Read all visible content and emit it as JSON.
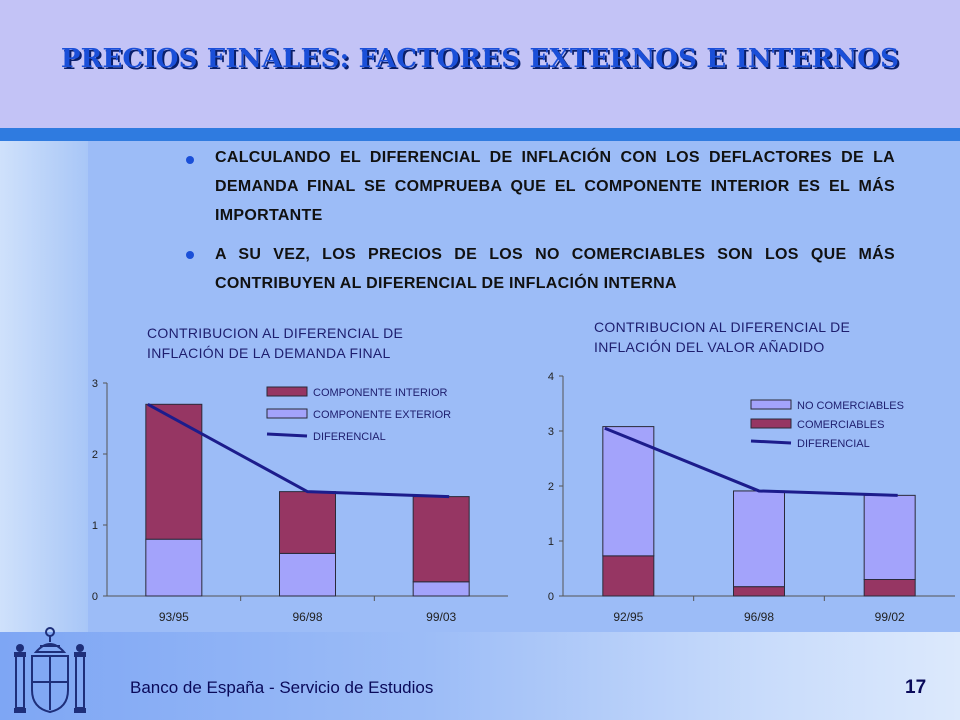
{
  "slide": {
    "title": "PRECIOS FINALES: FACTORES EXTERNOS E INTERNOS",
    "bullets": [
      "CALCULANDO  EL DIFERENCIAL DE INFLACIÓN CON  LOS DEFLACTORES DE LA DEMANDA FINAL SE COMPRUEBA QUE EL COMPONENTE INTERIOR ES EL MÁS IMPORTANTE",
      "A SU VEZ, LOS PRECIOS DE LOS NO COMERCIABLES SON LOS QUE MÁS CONTRIBUYEN AL DIFERENCIAL DE INFLACIÓN INTERNA"
    ],
    "footer": "Banco de España - Servicio de Estudios",
    "page_number": "17"
  },
  "colors": {
    "maroon": "#963663",
    "lavender": "#a3a3fb",
    "line": "#1c1c8c",
    "title": "#1a4fd8"
  },
  "chart_data": [
    {
      "type": "bar",
      "stacked": true,
      "title": "CONTRIBUCION AL DIFERENCIAL  DE INFLACIÓN DE LA DEMANDA FINAL",
      "categories": [
        "93/95",
        "96/98",
        "99/03"
      ],
      "yticks": [
        "0",
        "1",
        "2",
        "3"
      ],
      "ylim": [
        0,
        3
      ],
      "series": [
        {
          "name": "COMPONENTE  EXTERIOR",
          "kind": "bar",
          "values": [
            0.8,
            0.6,
            0.2
          ]
        },
        {
          "name": "COMPONENTE  INTERIOR",
          "kind": "bar",
          "values": [
            1.9,
            0.87,
            1.2
          ]
        },
        {
          "name": "DIFERENCIAL",
          "kind": "line",
          "values": [
            2.7,
            1.47,
            1.4
          ]
        }
      ],
      "legend_order": [
        "COMPONENTE  INTERIOR",
        "COMPONENTE  EXTERIOR",
        "DIFERENCIAL"
      ],
      "legend": "top-right",
      "grid": false
    },
    {
      "type": "bar",
      "stacked": true,
      "title": "CONTRIBUCION AL DIFERENCIAL  DE INFLACIÓN DEL VALOR AÑADIDO",
      "categories": [
        "92/95",
        "96/98",
        "99/02"
      ],
      "yticks": [
        "0",
        "1",
        "2",
        "3",
        "4"
      ],
      "ylim": [
        0,
        4
      ],
      "series": [
        {
          "name": "COMERCIABLES",
          "kind": "bar",
          "values": [
            0.73,
            0.17,
            0.3
          ]
        },
        {
          "name": "NO COMERCIABLES",
          "kind": "bar",
          "values": [
            2.35,
            1.74,
            1.53
          ]
        },
        {
          "name": "DIFERENCIAL",
          "kind": "line",
          "values": [
            3.05,
            1.91,
            1.83
          ]
        }
      ],
      "legend_order": [
        "NO COMERCIABLES",
        "COMERCIABLES",
        "DIFERENCIAL"
      ],
      "legend": "top-right",
      "grid": false
    }
  ]
}
